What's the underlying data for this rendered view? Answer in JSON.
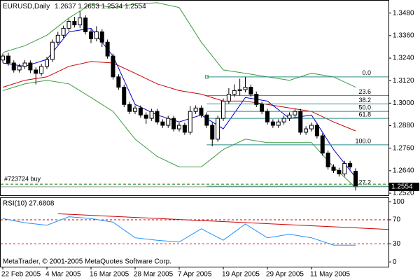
{
  "chart_data": [
    {
      "type": "candlestick",
      "title": "EURUSD,Daily",
      "categories": [
        "22 Feb 2005",
        null,
        null,
        null,
        null,
        null,
        null,
        null,
        "4 Mar 2005",
        null,
        null,
        null,
        null,
        null,
        null,
        null,
        "16 Mar 2005",
        null,
        null,
        null,
        null,
        null,
        null,
        null,
        "28 Mar 2005",
        null,
        null,
        null,
        null,
        null,
        null,
        null,
        "7 Apr 2005",
        null,
        null,
        null,
        null,
        null,
        null,
        null,
        "19 Apr 2005",
        null,
        null,
        null,
        null,
        null,
        null,
        null,
        "29 Apr 2005",
        null,
        null,
        null,
        null,
        null,
        null,
        null,
        "11 May 2005",
        null,
        null,
        null,
        null,
        null,
        null,
        null,
        null
      ],
      "open": [
        1.323,
        1.3251,
        1.3214,
        1.3177,
        1.3196,
        1.3214,
        1.3177,
        1.3159,
        1.3196,
        1.3233,
        1.3325,
        1.3362,
        1.3399,
        1.3436,
        1.3417,
        1.3454,
        1.338,
        1.3343,
        1.338,
        1.3325,
        1.3251,
        1.314,
        1.3085,
        1.2993,
        1.2956,
        1.2974,
        1.2937,
        1.2919,
        1.2956,
        1.29,
        1.2882,
        1.2919,
        1.2863,
        1.2882,
        1.2845,
        1.2956,
        1.2974,
        1.2937,
        1.2882,
        1.2808,
        1.2919,
        1.3011,
        1.3048,
        1.3067,
        1.3072,
        1.3085,
        1.3048,
        1.2993,
        1.2956,
        1.29,
        1.2882,
        1.29,
        1.2919,
        1.2937,
        1.2956,
        1.2845,
        1.2863,
        1.2882,
        1.2826,
        1.2734,
        1.266,
        1.2642,
        1.2623,
        1.2679,
        1.2637
      ],
      "high": [
        1.3265,
        1.3268,
        1.3228,
        1.321,
        1.323,
        1.3228,
        1.3191,
        1.321,
        1.3247,
        1.3339,
        1.338,
        1.3413,
        1.345,
        1.346,
        1.349,
        1.3468,
        1.3394,
        1.341,
        1.3394,
        1.3339,
        1.3265,
        1.3154,
        1.3099,
        1.3007,
        1.2988,
        1.2988,
        1.2951,
        1.297,
        1.297,
        1.2914,
        1.2933,
        1.2933,
        1.2896,
        1.2896,
        1.2985,
        1.2988,
        1.2988,
        1.2951,
        1.2896,
        1.2933,
        1.3025,
        1.308,
        1.31,
        1.313,
        1.314,
        1.3099,
        1.3062,
        1.3007,
        1.297,
        1.2914,
        1.2914,
        1.2933,
        1.2951,
        1.297,
        1.297,
        1.2877,
        1.2896,
        1.2896,
        1.284,
        1.2748,
        1.2674,
        1.2656,
        1.2693,
        1.2693,
        1.2653
      ],
      "low": [
        1.3216,
        1.32,
        1.3163,
        1.3163,
        1.3182,
        1.316,
        1.31,
        1.3145,
        1.3182,
        1.3219,
        1.3311,
        1.3348,
        1.3385,
        1.3403,
        1.34,
        1.3366,
        1.332,
        1.3329,
        1.33,
        1.3237,
        1.3126,
        1.3071,
        1.2979,
        1.2942,
        1.2942,
        1.2923,
        1.289,
        1.2905,
        1.2886,
        1.2868,
        1.2868,
        1.2849,
        1.2849,
        1.2831,
        1.2831,
        1.2942,
        1.2923,
        1.2868,
        1.277,
        1.2794,
        1.2905,
        1.2997,
        1.3034,
        1.304,
        1.3058,
        1.3034,
        1.2979,
        1.2942,
        1.2886,
        1.2868,
        1.2868,
        1.2886,
        1.2905,
        1.2923,
        1.2831,
        1.2831,
        1.2849,
        1.2812,
        1.272,
        1.2646,
        1.2628,
        1.2609,
        1.2609,
        1.2646,
        1.2534
      ],
      "close": [
        1.3251,
        1.3214,
        1.3177,
        1.3196,
        1.3214,
        1.3177,
        1.3159,
        1.3196,
        1.3233,
        1.3325,
        1.3362,
        1.3399,
        1.3436,
        1.3417,
        1.3454,
        1.338,
        1.3343,
        1.338,
        1.3325,
        1.3251,
        1.314,
        1.3085,
        1.2993,
        1.2956,
        1.2974,
        1.2937,
        1.2919,
        1.2956,
        1.29,
        1.2882,
        1.2919,
        1.2863,
        1.2882,
        1.2845,
        1.2956,
        1.2974,
        1.2937,
        1.2882,
        1.2808,
        1.2919,
        1.3011,
        1.3048,
        1.3067,
        1.3072,
        1.3085,
        1.3048,
        1.2993,
        1.2956,
        1.29,
        1.2882,
        1.29,
        1.2919,
        1.2937,
        1.2956,
        1.2845,
        1.2863,
        1.2882,
        1.2826,
        1.2734,
        1.266,
        1.2642,
        1.2623,
        1.2679,
        1.266,
        1.2554
      ],
      "lines": [
        {
          "color": "#3c9a3c",
          "x": [
            0,
            4,
            8,
            12,
            16,
            20,
            24,
            28,
            32,
            36,
            40,
            44,
            48,
            52,
            56,
            60,
            64
          ],
          "values": [
            1.327,
            1.3306,
            1.3362,
            1.3454,
            1.3528,
            1.351,
            1.3528,
            1.3535,
            1.351,
            1.3325,
            1.3177,
            1.3159,
            1.314,
            1.3122,
            1.3159,
            1.314,
            1.3085
          ]
        },
        {
          "color": "#3c9a3c",
          "x": [
            0,
            4,
            8,
            12,
            16,
            20,
            24,
            28,
            32,
            36,
            40,
            44,
            48,
            52,
            56,
            60,
            64
          ],
          "values": [
            1.3067,
            1.3103,
            1.3122,
            1.3103,
            1.303,
            1.2956,
            1.2808,
            1.2716,
            1.266,
            1.266,
            1.2753,
            1.2808,
            1.279,
            1.279,
            1.279,
            1.266,
            1.255
          ]
        },
        {
          "color": "#c80000",
          "x": [
            0,
            4,
            8,
            12,
            16,
            20,
            24,
            28,
            32,
            36,
            40,
            44,
            48,
            52,
            56,
            60,
            64
          ],
          "values": [
            1.3085,
            1.3122,
            1.314,
            1.3196,
            1.3222,
            1.3214,
            1.3159,
            1.3103,
            1.3067,
            1.3048,
            1.3011,
            1.3011,
            1.2993,
            1.2974,
            1.2956,
            1.29,
            1.2852
          ]
        },
        {
          "color": "#0000c8",
          "x": [
            0,
            4,
            8,
            12,
            16,
            20,
            24,
            28,
            32,
            36,
            40,
            44,
            48,
            52,
            56,
            60,
            64
          ],
          "values": [
            1.3214,
            1.3196,
            1.3233,
            1.338,
            1.3399,
            1.3251,
            1.2993,
            1.2937,
            1.29,
            1.2937,
            1.2863,
            1.303,
            1.3011,
            1.2919,
            1.2937,
            1.2753,
            1.2605
          ]
        }
      ],
      "fibo": {
        "color": "#2a8a8a",
        "start": 37,
        "levels": [
          {
            "label": "0.0",
            "value": 1.314
          },
          {
            "label": "23.6",
            "value": 1.3041
          },
          {
            "label": "38.2",
            "value": 1.2996
          },
          {
            "label": "50.0",
            "value": 1.2956
          },
          {
            "label": "61.8",
            "value": 1.2919
          },
          {
            "label": "100.0",
            "value": 1.2778
          },
          {
            "label": "127.2",
            "value": 1.2557
          }
        ]
      },
      "order": {
        "label": "#723724 buy",
        "value": 1.2568,
        "color": "#008000"
      },
      "ylim": [
        1.2509,
        1.3546
      ],
      "yticks": [
        {
          "value": 1.348,
          "label": "1.3480"
        },
        {
          "value": 1.336,
          "label": "1.3360"
        },
        {
          "value": 1.324,
          "label": "1.3240"
        },
        {
          "value": 1.312,
          "label": "1.3120"
        },
        {
          "value": 1.3,
          "label": "1.3000"
        },
        {
          "value": 1.288,
          "label": "1.2880"
        },
        {
          "value": 1.276,
          "label": "1.2760"
        },
        {
          "value": 1.264,
          "label": "1.2640"
        },
        {
          "value": 1.252,
          "label": "1.2520"
        }
      ]
    },
    {
      "type": "line",
      "title": "RSI(10) 27.6808",
      "x": [
        0,
        4,
        8,
        12,
        16,
        20,
        24,
        28,
        32,
        36,
        40,
        44,
        48,
        52,
        56,
        60,
        64
      ],
      "values": [
        72,
        65,
        61,
        75,
        72,
        66,
        40,
        36,
        33,
        55,
        36,
        63,
        40,
        46,
        40,
        28,
        27.68
      ],
      "color": "#1e90ff",
      "levels": [
        30,
        70
      ],
      "level_color": "#cc0000",
      "trendline": {
        "x": [
          10,
          70
        ],
        "values": [
          80,
          54
        ],
        "color": "#cc0000"
      },
      "ylim": [
        -8,
        106
      ],
      "yticks": [
        0,
        30,
        70,
        100
      ],
      "annotation": "MetaTrader, © 2001-2005 MetaQuotes Software Corp."
    }
  ]
}
